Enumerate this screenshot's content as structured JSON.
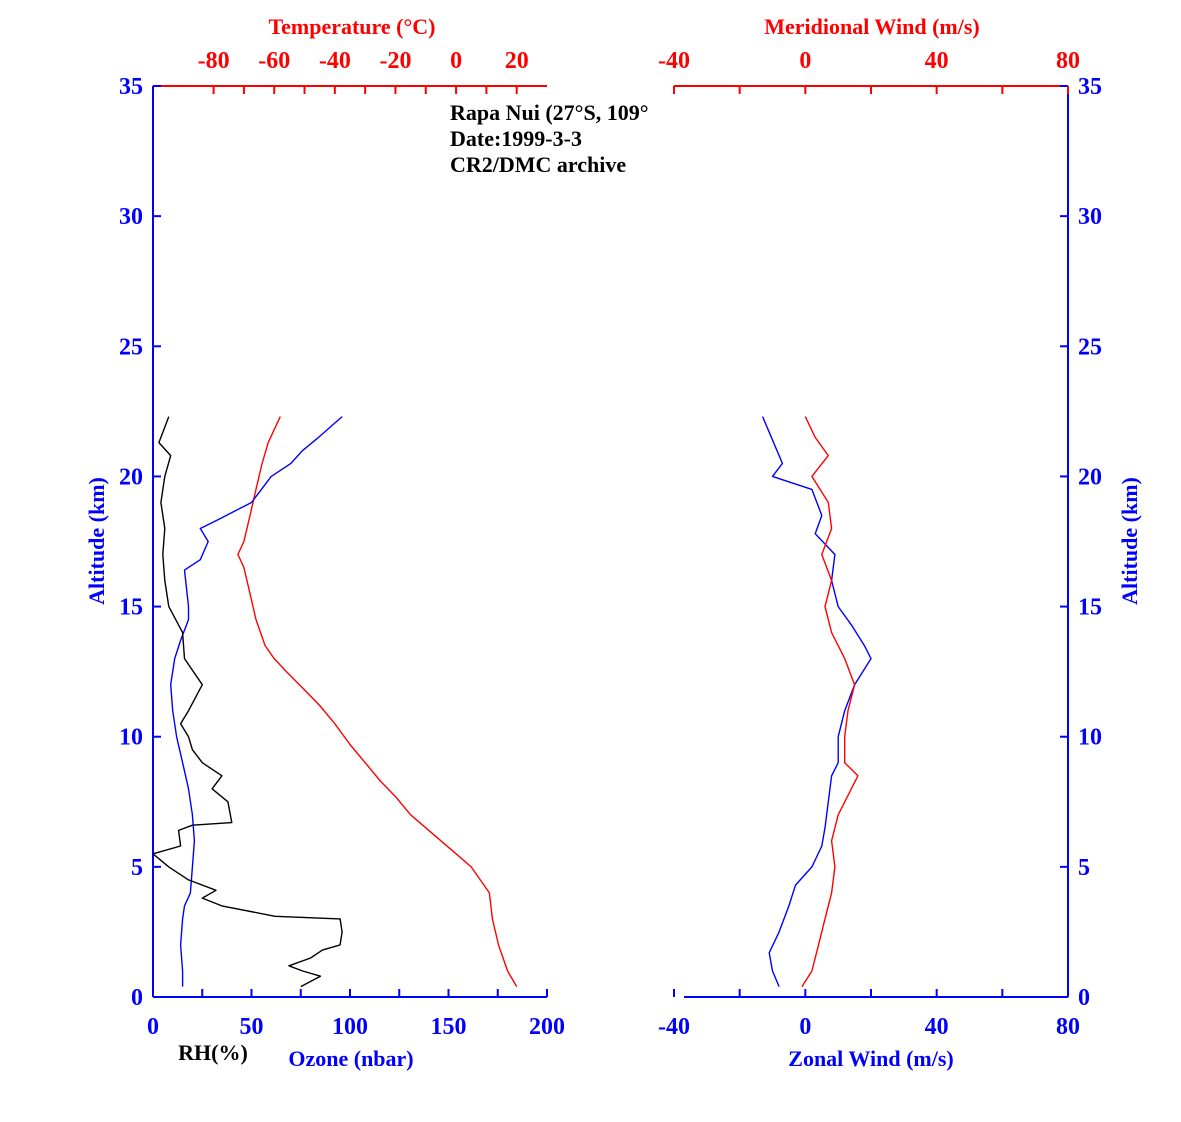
{
  "chart_data": [
    {
      "type": "line",
      "panel": "left",
      "annotation": [
        "Rapa Nui (27°S, 109°",
        "Date:1999-3-3",
        "CR2/DMC archive"
      ],
      "y_axis": {
        "label": "Altitude (km)",
        "lim": [
          0,
          35
        ],
        "ticks": [
          0,
          5,
          10,
          15,
          20,
          25,
          30,
          35
        ]
      },
      "x_axis_bottom": {
        "label": "Ozone (nbar)",
        "lim": [
          0,
          200
        ],
        "ticks": [
          0,
          50,
          100,
          150,
          200
        ]
      },
      "x_axis_bottom_secondary_label": "RH(%)",
      "x_axis_top": {
        "label": "Temperature (°C)",
        "lim": [
          -100,
          30
        ],
        "ticks": [
          -80,
          -60,
          -40,
          -20,
          0,
          20
        ]
      },
      "series": [
        {
          "key": "temperature",
          "color": "#ff0000",
          "axis": "top",
          "points": [
            [
              20,
              0.4
            ],
            [
              17,
              1
            ],
            [
              14,
              2
            ],
            [
              12,
              3
            ],
            [
              11,
              4
            ],
            [
              8,
              4.5
            ],
            [
              5,
              5
            ],
            [
              0,
              5.5
            ],
            [
              -5,
              6
            ],
            [
              -10,
              6.5
            ],
            [
              -15,
              7
            ],
            [
              -20,
              7.7
            ],
            [
              -25,
              8.3
            ],
            [
              -30,
              9
            ],
            [
              -35,
              9.7
            ],
            [
              -40,
              10.5
            ],
            [
              -45,
              11.2
            ],
            [
              -50,
              11.8
            ],
            [
              -56,
              12.5
            ],
            [
              -60,
              13
            ],
            [
              -63,
              13.5
            ],
            [
              -66,
              14.5
            ],
            [
              -68,
              15.5
            ],
            [
              -70,
              16.5
            ],
            [
              -72,
              17
            ],
            [
              -70,
              17.5
            ],
            [
              -68,
              18.5
            ],
            [
              -66,
              19.5
            ],
            [
              -64,
              20.5
            ],
            [
              -62,
              21.3
            ],
            [
              -60,
              21.8
            ],
            [
              -58,
              22.3
            ]
          ]
        },
        {
          "key": "ozone",
          "color": "#0000ff",
          "axis": "bottom",
          "points": [
            [
              15,
              0.4
            ],
            [
              15,
              1
            ],
            [
              14,
              2
            ],
            [
              15,
              3
            ],
            [
              16,
              3.5
            ],
            [
              19,
              4
            ],
            [
              20,
              5
            ],
            [
              21,
              6
            ],
            [
              20,
              7
            ],
            [
              18,
              8
            ],
            [
              15,
              9
            ],
            [
              12,
              10
            ],
            [
              10,
              11
            ],
            [
              9,
              12
            ],
            [
              11,
              13
            ],
            [
              14,
              13.7
            ],
            [
              18,
              14.5
            ],
            [
              18,
              15
            ],
            [
              16,
              16.4
            ],
            [
              24,
              16.8
            ],
            [
              28,
              17.5
            ],
            [
              24,
              18
            ],
            [
              32,
              18.3
            ],
            [
              50,
              19
            ],
            [
              55,
              19.5
            ],
            [
              60,
              20
            ],
            [
              70,
              20.5
            ],
            [
              76,
              21
            ],
            [
              84,
              21.5
            ],
            [
              96,
              22.3
            ]
          ]
        },
        {
          "key": "rh",
          "color": "#000000",
          "axis": "bottom",
          "points": [
            [
              75,
              0.4
            ],
            [
              85,
              0.8
            ],
            [
              76,
              1
            ],
            [
              69,
              1.2
            ],
            [
              80,
              1.5
            ],
            [
              86,
              1.8
            ],
            [
              95,
              2
            ],
            [
              96,
              2.5
            ],
            [
              95,
              3
            ],
            [
              62,
              3.1
            ],
            [
              35,
              3.5
            ],
            [
              25,
              3.8
            ],
            [
              32,
              4.1
            ],
            [
              18,
              4.5
            ],
            [
              8,
              5
            ],
            [
              0,
              5.5
            ],
            [
              14,
              5.8
            ],
            [
              13,
              6.4
            ],
            [
              20,
              6.6
            ],
            [
              40,
              6.7
            ],
            [
              38,
              7.5
            ],
            [
              30,
              8
            ],
            [
              35,
              8.5
            ],
            [
              25,
              9
            ],
            [
              20,
              9.5
            ],
            [
              18,
              10
            ],
            [
              14,
              10.5
            ],
            [
              18,
              11
            ],
            [
              25,
              12
            ],
            [
              16,
              13
            ],
            [
              15,
              14
            ],
            [
              8,
              15
            ],
            [
              6,
              16
            ],
            [
              5,
              17
            ],
            [
              6,
              18
            ],
            [
              4,
              19
            ],
            [
              6,
              20
            ],
            [
              9,
              20.8
            ],
            [
              3,
              21.3
            ],
            [
              8,
              22.3
            ]
          ]
        }
      ]
    },
    {
      "type": "line",
      "panel": "right",
      "y_axis": {
        "label": "Altitude (km)",
        "lim": [
          0,
          35
        ],
        "ticks": [
          0,
          5,
          10,
          15,
          20,
          25,
          30,
          35
        ]
      },
      "x_axis_bottom": {
        "label": "Zonal Wind (m/s)",
        "lim": [
          -40,
          80
        ],
        "ticks": [
          -40,
          0,
          40,
          80
        ]
      },
      "x_axis_top": {
        "label": "Meridional Wind (m/s)",
        "lim": [
          -40,
          80
        ],
        "ticks": [
          -40,
          0,
          40,
          80
        ]
      },
      "series": [
        {
          "key": "zonal_wind",
          "color": "#0000ff",
          "axis": "bottom",
          "points": [
            [
              -8,
              0.4
            ],
            [
              -10,
              1
            ],
            [
              -11,
              1.7
            ],
            [
              -8,
              2.5
            ],
            [
              -5,
              3.5
            ],
            [
              -3,
              4.3
            ],
            [
              2,
              5
            ],
            [
              5,
              5.8
            ],
            [
              6,
              6.5
            ],
            [
              7,
              7.5
            ],
            [
              8,
              8.5
            ],
            [
              10,
              9
            ],
            [
              10,
              10
            ],
            [
              12,
              11
            ],
            [
              15,
              12
            ],
            [
              20,
              13
            ],
            [
              18,
              13.5
            ],
            [
              14,
              14.3
            ],
            [
              10,
              15
            ],
            [
              8,
              16
            ],
            [
              9,
              17
            ],
            [
              3,
              17.8
            ],
            [
              5,
              18.5
            ],
            [
              2,
              19.5
            ],
            [
              -10,
              20
            ],
            [
              -7,
              20.5
            ],
            [
              -11,
              21.7
            ],
            [
              -13,
              22.3
            ]
          ]
        },
        {
          "key": "meridional_wind",
          "color": "#ff0000",
          "axis": "top",
          "points": [
            [
              -1,
              0.4
            ],
            [
              2,
              1
            ],
            [
              4,
              2
            ],
            [
              6,
              3
            ],
            [
              8,
              4
            ],
            [
              9,
              5
            ],
            [
              8,
              6
            ],
            [
              10,
              7
            ],
            [
              16,
              8.5
            ],
            [
              12,
              9
            ],
            [
              12,
              10
            ],
            [
              13,
              11
            ],
            [
              15,
              12
            ],
            [
              12,
              13
            ],
            [
              8,
              14
            ],
            [
              6,
              15
            ],
            [
              8,
              16
            ],
            [
              5,
              17
            ],
            [
              8,
              18
            ],
            [
              7,
              19
            ],
            [
              2,
              20
            ],
            [
              7,
              20.8
            ],
            [
              3,
              21.5
            ],
            [
              0,
              22.3
            ]
          ]
        }
      ]
    }
  ]
}
